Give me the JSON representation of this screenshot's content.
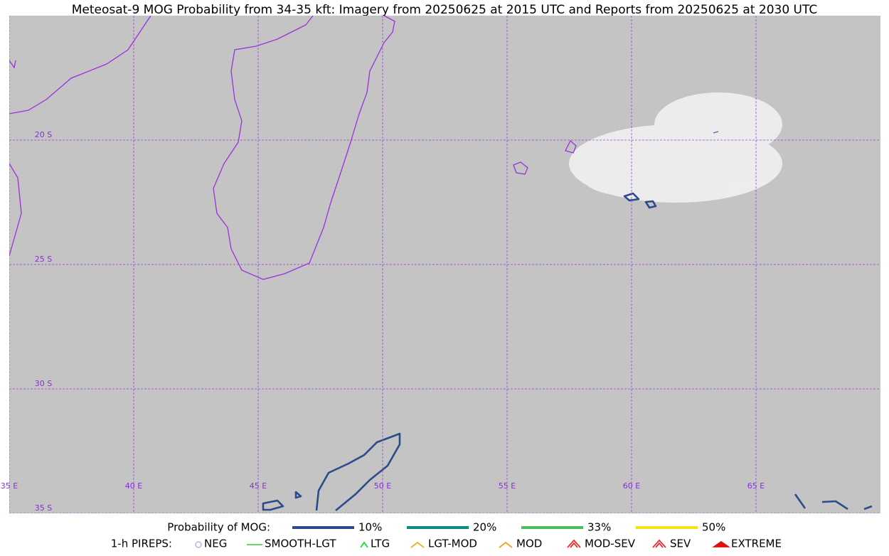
{
  "title": "Meteosat-9 MOG Probability from 34-35 kft: Imagery from 20250625 at 2015 UTC and Reports from 20250625 at 2030 UTC",
  "map": {
    "lon_labels": [
      "35 E",
      "40 E",
      "45 E",
      "50 E",
      "55 E",
      "60 E",
      "65 E"
    ],
    "lat_labels": [
      "20 S",
      "25 S",
      "30 S",
      "35 S"
    ]
  },
  "legend": {
    "probability": {
      "label": "Probability of MOG:",
      "items": [
        {
          "name": "10%",
          "color": "#2d4a8a"
        },
        {
          "name": "20%",
          "color": "#138a80"
        },
        {
          "name": "33%",
          "color": "#45c15a"
        },
        {
          "name": "50%",
          "color": "#f6e21b"
        }
      ]
    },
    "pireps": {
      "label": "1-h PIREPS:",
      "items": [
        {
          "name": "NEG",
          "color": "#b8b4f0"
        },
        {
          "name": "SMOOTH-LGT",
          "color": "#33cc33"
        },
        {
          "name": "LTG",
          "color": "#22dd22"
        },
        {
          "name": "LGT-MOD",
          "color": "#f0b020"
        },
        {
          "name": "MOD",
          "color": "#f0a020"
        },
        {
          "name": "MOD-SEV",
          "color": "#e83030"
        },
        {
          "name": "SEV",
          "color": "#e03030"
        },
        {
          "name": "EXTREME",
          "color": "#e01010"
        }
      ]
    }
  }
}
